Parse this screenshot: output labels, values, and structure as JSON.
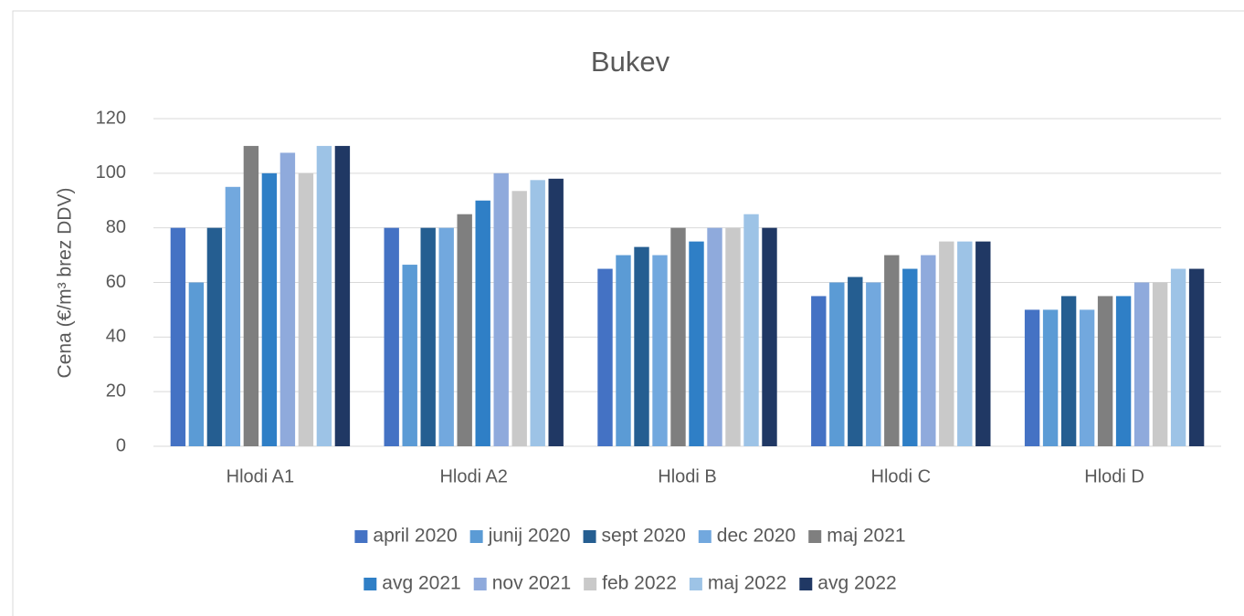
{
  "chart_data": {
    "type": "bar",
    "title": "Bukev",
    "y_label": "Cena (€/m³ brez DDV)",
    "categories": [
      "Hlodi A1",
      "Hlodi A2",
      "Hlodi B",
      "Hlodi C",
      "Hlodi D"
    ],
    "series": [
      {
        "name": "april 2020",
        "color": "#4472c4",
        "values": [
          80,
          80,
          65,
          55,
          50
        ]
      },
      {
        "name": "junij 2020",
        "color": "#5b9bd5",
        "values": [
          60,
          66.5,
          70,
          60,
          50
        ]
      },
      {
        "name": "sept 2020",
        "color": "#255e91",
        "values": [
          80,
          80,
          73,
          62,
          55
        ]
      },
      {
        "name": "dec 2020",
        "color": "#72a8de",
        "values": [
          95,
          80,
          70,
          60,
          50
        ]
      },
      {
        "name": "maj 2021",
        "color": "#7f7f7f",
        "values": [
          110,
          85,
          80,
          70,
          55
        ]
      },
      {
        "name": "avg 2021",
        "color": "#2f7fc6",
        "values": [
          100,
          90,
          75,
          65,
          55
        ]
      },
      {
        "name": "nov 2021",
        "color": "#8faadc",
        "values": [
          107.5,
          100,
          80,
          70,
          60
        ]
      },
      {
        "name": "feb 2022",
        "color": "#c9c9c9",
        "values": [
          100,
          93.5,
          80,
          75,
          60
        ]
      },
      {
        "name": "maj 2022",
        "color": "#9dc3e6",
        "values": [
          110,
          97.5,
          85,
          75,
          65
        ]
      },
      {
        "name": "avg 2022",
        "color": "#203864",
        "values": [
          110,
          98,
          80,
          75,
          65
        ]
      }
    ],
    "ylim": [
      0,
      120
    ],
    "yticks": [
      0,
      20,
      40,
      60,
      80,
      100,
      120
    ],
    "grid": true,
    "legend": "bottom"
  }
}
